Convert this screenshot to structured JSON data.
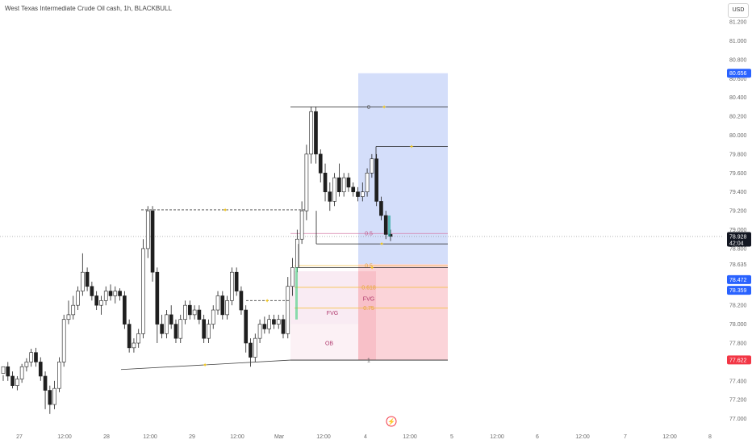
{
  "header": {
    "title": "West Texas Intermediate Crude Oil cash, 1h, BLACKBULL",
    "currency_button": "USD"
  },
  "chart_data": {
    "type": "candlestick",
    "title": "West Texas Intermediate Crude Oil cash, 1h, BLACKBULL",
    "y_ticks": [
      "81.200",
      "81.000",
      "80.800",
      "80.600",
      "80.400",
      "80.200",
      "80.000",
      "79.800",
      "79.600",
      "79.400",
      "79.200",
      "79.000",
      "78.800",
      "78.200",
      "78.000",
      "77.800",
      "77.400",
      "77.200",
      "77.000"
    ],
    "ylim": [
      76.92,
      81.26
    ],
    "x_ticks": [
      "27",
      "12:00",
      "28",
      "12:00",
      "29",
      "12:00",
      "Mar",
      "12:00",
      "4",
      "12:00",
      "5",
      "12:00",
      "6",
      "12:00",
      "7",
      "12:00",
      "8"
    ],
    "price_tags": [
      {
        "value": "80.656",
        "color": "#2962ff"
      },
      {
        "value": "78.928",
        "sub": "42:04",
        "color": "#131722"
      },
      {
        "value": "78.635",
        "color": "#ffffff"
      },
      {
        "value": "78.472",
        "color": "#2962ff"
      },
      {
        "value": "78.359",
        "color": "#2962ff"
      },
      {
        "value": "77.622",
        "color": "#f23645"
      }
    ],
    "fib_levels": [
      {
        "label": "0",
        "value": 80.3
      },
      {
        "label": "0.5",
        "value": 78.96
      },
      {
        "label": "1",
        "value": 77.62
      }
    ],
    "fvg_labels": [
      "0.5",
      "0.618",
      "0.75"
    ],
    "zone_labels": {
      "fvg_right": "FVG",
      "fvg_left": "FVG",
      "ob": "OB"
    },
    "position": {
      "entry": 78.635,
      "target": 80.656,
      "stop": 77.622
    },
    "candles": [
      [
        77.48,
        77.55,
        77.46,
        77.4
      ],
      [
        77.55,
        77.45,
        77.6,
        77.4
      ],
      [
        77.45,
        77.35,
        77.5,
        77.32
      ],
      [
        77.35,
        77.42,
        77.45,
        77.3
      ],
      [
        77.42,
        77.55,
        77.58,
        77.38
      ],
      [
        77.55,
        77.6,
        77.64,
        77.5
      ],
      [
        77.6,
        77.7,
        77.74,
        77.55
      ],
      [
        77.7,
        77.6,
        77.75,
        77.55
      ],
      [
        77.6,
        77.45,
        77.65,
        77.4
      ],
      [
        77.45,
        77.3,
        77.5,
        77.1
      ],
      [
        77.3,
        77.15,
        77.35,
        77.05
      ],
      [
        77.15,
        77.32,
        77.4,
        77.1
      ],
      [
        77.32,
        77.6,
        77.65,
        77.28
      ],
      [
        77.6,
        78.05,
        78.1,
        77.55
      ],
      [
        78.05,
        78.1,
        78.25,
        78.0
      ],
      [
        78.1,
        78.2,
        78.3,
        78.05
      ],
      [
        78.2,
        78.35,
        78.4,
        78.15
      ],
      [
        78.35,
        78.55,
        78.75,
        78.3
      ],
      [
        78.55,
        78.4,
        78.6,
        78.35
      ],
      [
        78.4,
        78.3,
        78.45,
        78.25
      ],
      [
        78.3,
        78.2,
        78.35,
        78.15
      ],
      [
        78.2,
        78.25,
        78.3,
        78.1
      ],
      [
        78.25,
        78.35,
        78.4,
        78.2
      ],
      [
        78.35,
        78.3,
        78.42,
        78.25
      ],
      [
        78.3,
        78.35,
        78.4,
        78.22
      ],
      [
        78.35,
        78.3,
        78.38,
        78.25
      ],
      [
        78.3,
        78.0,
        78.35,
        77.95
      ],
      [
        78.0,
        77.75,
        78.05,
        77.7
      ],
      [
        77.75,
        77.8,
        77.85,
        77.7
      ],
      [
        77.8,
        77.9,
        77.95,
        77.75
      ],
      [
        77.9,
        78.8,
        78.9,
        77.85
      ],
      [
        78.8,
        79.2,
        79.25,
        78.7
      ],
      [
        79.2,
        78.55,
        79.25,
        78.45
      ],
      [
        78.55,
        78.0,
        78.6,
        77.8
      ],
      [
        78.0,
        77.9,
        78.1,
        77.85
      ],
      [
        77.9,
        78.1,
        78.15,
        77.85
      ],
      [
        78.1,
        78.0,
        78.2,
        77.95
      ],
      [
        78.0,
        77.85,
        78.05,
        77.8
      ],
      [
        77.85,
        78.05,
        78.1,
        77.8
      ],
      [
        78.05,
        78.2,
        78.25,
        78.0
      ],
      [
        78.2,
        78.1,
        78.25,
        78.05
      ],
      [
        78.1,
        78.15,
        78.2,
        78.05
      ],
      [
        78.15,
        78.05,
        78.2,
        78.0
      ],
      [
        78.05,
        77.85,
        78.1,
        77.8
      ],
      [
        77.85,
        78.0,
        78.05,
        77.8
      ],
      [
        78.0,
        78.15,
        78.2,
        77.95
      ],
      [
        78.15,
        78.3,
        78.35,
        78.1
      ],
      [
        78.3,
        78.1,
        78.35,
        78.05
      ],
      [
        78.1,
        78.25,
        78.3,
        78.05
      ],
      [
        78.25,
        78.55,
        78.6,
        78.2
      ],
      [
        78.55,
        78.35,
        78.6,
        78.3
      ],
      [
        78.35,
        78.15,
        78.4,
        78.1
      ],
      [
        78.15,
        77.8,
        78.2,
        77.7
      ],
      [
        77.8,
        77.65,
        77.85,
        77.55
      ],
      [
        77.65,
        77.85,
        77.9,
        77.6
      ],
      [
        77.85,
        78.0,
        78.05,
        77.8
      ],
      [
        78.0,
        77.95,
        78.08,
        77.9
      ],
      [
        77.95,
        78.05,
        78.1,
        77.9
      ],
      [
        78.05,
        78.0,
        78.1,
        77.95
      ],
      [
        78.0,
        78.05,
        78.1,
        77.95
      ],
      [
        78.05,
        77.9,
        78.1,
        77.85
      ],
      [
        77.9,
        78.4,
        78.5,
        77.85
      ],
      [
        78.4,
        78.6,
        78.7,
        78.3
      ],
      [
        78.6,
        78.9,
        79.0,
        78.55
      ],
      [
        78.9,
        79.2,
        79.3,
        78.85
      ],
      [
        79.2,
        79.8,
        79.9,
        79.1
      ],
      [
        79.8,
        80.25,
        80.3,
        79.7
      ],
      [
        80.25,
        79.8,
        80.3,
        79.7
      ],
      [
        79.8,
        79.6,
        79.85,
        79.5
      ],
      [
        79.6,
        79.4,
        79.7,
        79.3
      ],
      [
        79.4,
        79.3,
        79.5,
        79.2
      ],
      [
        79.3,
        79.55,
        79.6,
        79.25
      ],
      [
        79.55,
        79.4,
        79.7,
        79.35
      ],
      [
        79.4,
        79.55,
        79.6,
        79.35
      ],
      [
        79.55,
        79.45,
        79.6,
        79.4
      ],
      [
        79.45,
        79.4,
        79.5,
        79.35
      ],
      [
        79.4,
        79.35,
        79.45,
        79.3
      ],
      [
        79.35,
        79.4,
        79.5,
        79.3
      ],
      [
        79.4,
        79.6,
        79.65,
        79.35
      ],
      [
        79.6,
        79.75,
        79.8,
        79.55
      ],
      [
        79.75,
        79.3,
        79.8,
        79.25
      ],
      [
        79.3,
        79.15,
        79.35,
        79.1
      ],
      [
        79.15,
        78.95,
        79.2,
        78.9
      ],
      [
        78.95,
        78.93,
        79.0,
        78.88
      ]
    ]
  }
}
